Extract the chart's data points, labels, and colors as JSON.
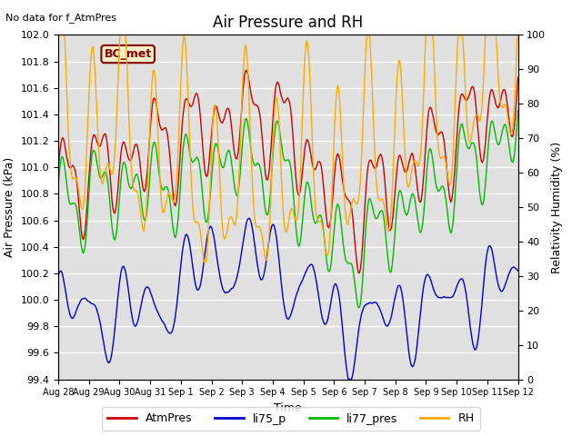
{
  "title": "Air Pressure and RH",
  "subtitle": "No data for f_AtmPres",
  "ylabel_left": "Air Pressure (kPa)",
  "ylabel_right": "Relativity Humidity (%)",
  "xlabel": "Time",
  "annotation": "BC_met",
  "ylim_left": [
    99.4,
    102.0
  ],
  "ylim_right": [
    0,
    100
  ],
  "yticks_left": [
    99.4,
    99.6,
    99.8,
    100.0,
    100.2,
    100.4,
    100.6,
    100.8,
    101.0,
    101.2,
    101.4,
    101.6,
    101.8,
    102.0
  ],
  "yticks_right": [
    0,
    10,
    20,
    30,
    40,
    50,
    60,
    70,
    80,
    90,
    100
  ],
  "colors": {
    "AtmPres": "#cc0000",
    "li75_p": "#0000cc",
    "li77_pres": "#00bb00",
    "RH": "#ffaa00"
  },
  "legend_labels": [
    "AtmPres",
    "li75_p",
    "li77_pres",
    "RH"
  ],
  "background_color": "#ffffff",
  "plot_bg_color": "#e0e0e0",
  "title_fontsize": 12,
  "label_fontsize": 9,
  "tick_fontsize": 8,
  "x_tick_labels": [
    "Aug 28",
    "Aug 29",
    "Aug 30",
    "Aug 31",
    "Sep 1",
    "Sep 2",
    "Sep 3",
    "Sep 4",
    "Sep 5",
    "Sep 6",
    "Sep 7",
    "Sep 8",
    "Sep 9",
    "Sep 10",
    "Sep 11",
    "Sep 12"
  ],
  "n_points": 480
}
